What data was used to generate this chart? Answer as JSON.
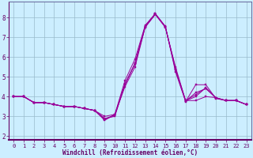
{
  "xlabel": "Windchill (Refroidissement éolien,°C)",
  "bg_color": "#cceeff",
  "grid_color": "#99bbcc",
  "line_color": "#990099",
  "xlim": [
    -0.5,
    23.5
  ],
  "ylim": [
    1.8,
    8.8
  ],
  "xticks": [
    0,
    1,
    2,
    3,
    4,
    5,
    6,
    7,
    8,
    9,
    10,
    11,
    12,
    13,
    14,
    15,
    16,
    17,
    18,
    19,
    20,
    21,
    22,
    23
  ],
  "yticks": [
    2,
    3,
    4,
    5,
    6,
    7,
    8
  ],
  "series": [
    [
      4.0,
      4.0,
      3.7,
      3.7,
      3.6,
      3.5,
      3.5,
      3.4,
      3.3,
      3.0,
      3.1,
      4.5,
      5.5,
      7.5,
      8.15,
      7.5,
      5.5,
      3.8,
      3.8,
      4.0,
      3.95,
      3.8,
      3.8,
      3.6
    ],
    [
      4.0,
      4.0,
      3.7,
      3.7,
      3.6,
      3.5,
      3.5,
      3.4,
      3.3,
      2.8,
      3.1,
      4.8,
      5.9,
      7.6,
      8.2,
      7.55,
      5.25,
      3.75,
      4.6,
      4.6,
      3.9,
      3.8,
      3.8,
      3.6
    ],
    [
      4.0,
      4.0,
      3.7,
      3.7,
      3.6,
      3.5,
      3.5,
      3.4,
      3.3,
      2.9,
      3.0,
      4.6,
      5.7,
      7.55,
      8.18,
      7.52,
      5.35,
      3.77,
      4.2,
      4.4,
      3.93,
      3.8,
      3.8,
      3.6
    ],
    [
      4.0,
      4.0,
      3.7,
      3.7,
      3.6,
      3.5,
      3.5,
      3.4,
      3.3,
      2.85,
      3.05,
      4.62,
      5.65,
      7.52,
      8.17,
      7.51,
      5.4,
      3.78,
      4.0,
      4.45,
      3.94,
      3.8,
      3.8,
      3.6
    ],
    [
      4.0,
      4.0,
      3.7,
      3.7,
      3.6,
      3.5,
      3.5,
      3.4,
      3.3,
      2.87,
      3.07,
      4.64,
      5.67,
      7.54,
      8.19,
      7.53,
      5.38,
      3.79,
      4.1,
      4.43,
      3.94,
      3.8,
      3.8,
      3.6
    ]
  ],
  "spine_color": "#666699",
  "tick_color": "#660066",
  "xlabel_fontsize": 5.5,
  "tick_fontsize": 5.0,
  "linewidth": 0.7,
  "markersize": 1.8
}
